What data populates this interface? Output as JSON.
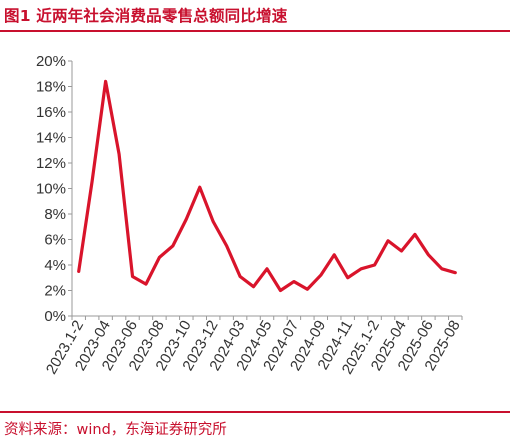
{
  "figure": {
    "title": "图1 近两年社会消费品零售总额同比增速",
    "source": "资料来源：wind，东海证券研究所"
  },
  "colors": {
    "accent": "#c8102e",
    "line": "#d9142b",
    "axis": "#999999",
    "text": "#333333"
  },
  "chart_data": {
    "type": "line",
    "title": "",
    "xlabel": "",
    "ylabel": "",
    "ylim": [
      0,
      20
    ],
    "yticks": [
      "0%",
      "2%",
      "4%",
      "6%",
      "8%",
      "10%",
      "12%",
      "14%",
      "16%",
      "18%",
      "20%"
    ],
    "grid": false,
    "legend": "none",
    "x": [
      "2023.1-2",
      "2023-03",
      "2023-04",
      "2023-05",
      "2023-06",
      "2023-07",
      "2023-08",
      "2023-09",
      "2023-10",
      "2023-11",
      "2023-12",
      "2024.1-2",
      "2024-03",
      "2024-04",
      "2024-05",
      "2024-06",
      "2024-07",
      "2024-08",
      "2024-09",
      "2024-10",
      "2024-11",
      "2024-12",
      "2025.1-2",
      "2025-03",
      "2025-04",
      "2025-05",
      "2025-06",
      "2025-07",
      "2025-08"
    ],
    "xtick_labels": [
      "2023.1-2",
      "2023-04",
      "2023-06",
      "2023-08",
      "2023-10",
      "2023-12",
      "2024-03",
      "2024-05",
      "2024-07",
      "2024-09",
      "2024-11",
      "2025.1-2",
      "2025-04",
      "2025-06",
      "2025-08"
    ],
    "series": [
      {
        "values": [
          3.5,
          10.6,
          18.4,
          12.7,
          3.1,
          2.5,
          4.6,
          5.5,
          7.6,
          10.1,
          7.4,
          5.5,
          3.1,
          2.3,
          3.7,
          2.0,
          2.7,
          2.1,
          3.2,
          4.8,
          3.0,
          3.7,
          4.0,
          5.9,
          5.1,
          6.4,
          4.8,
          3.7,
          3.4
        ]
      }
    ]
  }
}
